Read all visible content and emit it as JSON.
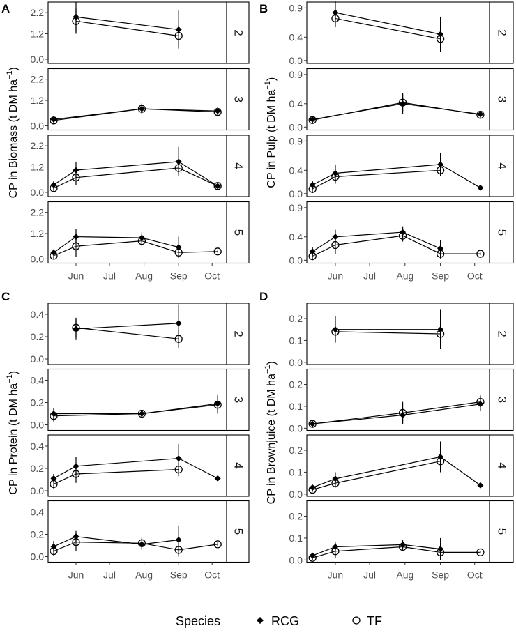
{
  "figure": {
    "x_ticks": [
      "Jun",
      "Jul",
      "Aug",
      "Sep",
      "Oct"
    ],
    "x_tick_days": [
      161,
      191,
      222,
      253,
      283
    ],
    "x_range_days": [
      136,
      296
    ],
    "legend": {
      "title": "Species",
      "items": [
        {
          "name": "RCG",
          "marker": "filled-diamond"
        },
        {
          "name": "TF",
          "marker": "open-circle"
        }
      ]
    }
  },
  "chart_data": [
    {
      "panel": "A",
      "type": "line",
      "ylabel": "CP in Biomass (t DM ha⁻¹)",
      "ylabel_base": "CP in Biomass (t DM ha",
      "ylabel_exp": "−1",
      "ylim": [
        -0.2,
        2.7
      ],
      "yticks": [
        "0.0",
        "1.2",
        "2.2"
      ],
      "ytick_values": [
        0.0,
        1.2,
        2.2
      ],
      "facets": [
        {
          "label": "2",
          "series": [
            {
              "name": "RCG",
              "x": [
                161,
                253
              ],
              "y": [
                2.0,
                1.4
              ],
              "err": [
                0.7,
                0.9
              ]
            },
            {
              "name": "TF",
              "x": [
                161,
                253
              ],
              "y": [
                1.8,
                1.1
              ],
              "err": [
                0.6,
                0.5
              ]
            }
          ]
        },
        {
          "label": "3",
          "series": [
            {
              "name": "RCG",
              "x": [
                141,
                220,
                288
              ],
              "y": [
                0.3,
                0.8,
                0.7
              ],
              "err": [
                0.15,
                0.25,
                0.2
              ]
            },
            {
              "name": "TF",
              "x": [
                141,
                220,
                288
              ],
              "y": [
                0.25,
                0.8,
                0.65
              ],
              "err": [
                0.15,
                0.25,
                0.2
              ]
            }
          ]
        },
        {
          "label": "4",
          "series": [
            {
              "name": "RCG",
              "x": [
                141,
                161,
                253,
                288
              ],
              "y": [
                0.35,
                1.05,
                1.45,
                0.3
              ],
              "err": [
                0.2,
                0.4,
                0.7,
                0.1
              ]
            },
            {
              "name": "TF",
              "x": [
                141,
                161,
                253,
                288
              ],
              "y": [
                0.2,
                0.7,
                1.15,
                0.3
              ],
              "err": [
                0.15,
                0.35,
                0.3,
                0.1
              ]
            }
          ]
        },
        {
          "label": "5",
          "series": [
            {
              "name": "RCG",
              "x": [
                141,
                161,
                220,
                253
              ],
              "y": [
                0.3,
                1.05,
                1.0,
                0.55
              ],
              "err": [
                0.15,
                0.35,
                0.25,
                0.5
              ]
            },
            {
              "name": "TF",
              "x": [
                141,
                161,
                220,
                253,
                288
              ],
              "y": [
                0.15,
                0.6,
                0.85,
                0.3,
                0.35
              ],
              "err": [
                0.15,
                0.5,
                0.25,
                0.25,
                0.05
              ]
            }
          ]
        }
      ]
    },
    {
      "panel": "B",
      "type": "line",
      "ylabel": "CP in Pulp (t DM ha⁻¹)",
      "ylabel_base": "CP in Pulp (t DM ha",
      "ylabel_exp": "−1",
      "ylim": [
        -0.05,
        1.0
      ],
      "yticks": [
        "0.0",
        "0.4",
        "0.9"
      ],
      "ytick_values": [
        0.0,
        0.4,
        0.9
      ],
      "facets": [
        {
          "label": "2",
          "series": [
            {
              "name": "RCG",
              "x": [
                161,
                253
              ],
              "y": [
                0.82,
                0.45
              ],
              "err": [
                0.2,
                0.3
              ]
            },
            {
              "name": "TF",
              "x": [
                161,
                253
              ],
              "y": [
                0.72,
                0.37
              ],
              "err": [
                0.15,
                0.2
              ]
            }
          ]
        },
        {
          "label": "3",
          "series": [
            {
              "name": "RCG",
              "x": [
                141,
                220,
                288
              ],
              "y": [
                0.13,
                0.4,
                0.22
              ],
              "err": [
                0.06,
                0.18,
                0.05
              ]
            },
            {
              "name": "TF",
              "x": [
                141,
                220,
                288
              ],
              "y": [
                0.12,
                0.42,
                0.21
              ],
              "err": [
                0.06,
                0.15,
                0.05
              ]
            }
          ]
        },
        {
          "label": "4",
          "series": [
            {
              "name": "RCG",
              "x": [
                141,
                161,
                253,
                288
              ],
              "y": [
                0.15,
                0.35,
                0.5,
                0.1
              ],
              "err": [
                0.07,
                0.15,
                0.2,
                0.03
              ]
            },
            {
              "name": "TF",
              "x": [
                141,
                161,
                253
              ],
              "y": [
                0.08,
                0.29,
                0.4
              ],
              "err": [
                0.07,
                0.12,
                0.1
              ]
            }
          ]
        },
        {
          "label": "5",
          "series": [
            {
              "name": "RCG",
              "x": [
                141,
                161,
                220,
                253
              ],
              "y": [
                0.15,
                0.4,
                0.48,
                0.2
              ],
              "err": [
                0.07,
                0.12,
                0.1,
                0.15
              ]
            },
            {
              "name": "TF",
              "x": [
                141,
                161,
                220,
                253,
                288
              ],
              "y": [
                0.07,
                0.26,
                0.42,
                0.11,
                0.11
              ],
              "err": [
                0.07,
                0.15,
                0.1,
                0.08,
                0.02
              ]
            }
          ]
        }
      ]
    },
    {
      "panel": "C",
      "type": "line",
      "ylabel": "CP in Protein (t DM ha⁻¹)",
      "ylabel_base": "CP in Protein (t DM ha",
      "ylabel_exp": "−1",
      "ylim": [
        -0.05,
        0.5
      ],
      "yticks": [
        "0.0",
        "0.2",
        "0.4"
      ],
      "ytick_values": [
        0.0,
        0.2,
        0.4
      ],
      "facets": [
        {
          "label": "2",
          "series": [
            {
              "name": "RCG",
              "x": [
                161,
                253
              ],
              "y": [
                0.27,
                0.32
              ],
              "err": [
                0.1,
                0.17
              ]
            },
            {
              "name": "TF",
              "x": [
                161,
                253
              ],
              "y": [
                0.28,
                0.18
              ],
              "err": [
                0.08,
                0.08
              ]
            }
          ]
        },
        {
          "label": "3",
          "series": [
            {
              "name": "RCG",
              "x": [
                141,
                220,
                288
              ],
              "y": [
                0.1,
                0.1,
                0.19
              ],
              "err": [
                0.05,
                0.03,
                0.08
              ]
            },
            {
              "name": "TF",
              "x": [
                141,
                220,
                288
              ],
              "y": [
                0.08,
                0.1,
                0.18
              ],
              "err": [
                0.05,
                0.03,
                0.08
              ]
            }
          ]
        },
        {
          "label": "4",
          "series": [
            {
              "name": "RCG",
              "x": [
                141,
                161,
                253,
                288
              ],
              "y": [
                0.11,
                0.22,
                0.29,
                0.11
              ],
              "err": [
                0.04,
                0.08,
                0.13,
                0.02
              ]
            },
            {
              "name": "TF",
              "x": [
                141,
                161,
                253
              ],
              "y": [
                0.06,
                0.15,
                0.19
              ],
              "err": [
                0.04,
                0.08,
                0.06
              ]
            }
          ]
        },
        {
          "label": "5",
          "series": [
            {
              "name": "RCG",
              "x": [
                141,
                161,
                220,
                253
              ],
              "y": [
                0.09,
                0.18,
                0.11,
                0.15
              ],
              "err": [
                0.05,
                0.05,
                0.05,
                0.13
              ]
            },
            {
              "name": "TF",
              "x": [
                141,
                161,
                220,
                253,
                288
              ],
              "y": [
                0.05,
                0.13,
                0.12,
                0.06,
                0.11
              ],
              "err": [
                0.04,
                0.08,
                0.05,
                0.06,
                0.02
              ]
            }
          ]
        }
      ]
    },
    {
      "panel": "D",
      "type": "line",
      "ylabel": "CP in Brownjuice (t DM ha⁻¹)",
      "ylabel_base": "CP in Brownjuice (t DM ha",
      "ylabel_exp": "−1",
      "ylim": [
        -0.01,
        0.27
      ],
      "yticks": [
        "0.0",
        "0.1",
        "0.2"
      ],
      "ytick_values": [
        0.0,
        0.1,
        0.2
      ],
      "facets": [
        {
          "label": "2",
          "series": [
            {
              "name": "RCG",
              "x": [
                161,
                253
              ],
              "y": [
                0.15,
                0.15
              ],
              "err": [
                0.06,
                0.09
              ]
            },
            {
              "name": "TF",
              "x": [
                161,
                253
              ],
              "y": [
                0.14,
                0.13
              ],
              "err": [
                0.05,
                0.04
              ]
            }
          ]
        },
        {
          "label": "3",
          "series": [
            {
              "name": "RCG",
              "x": [
                141,
                220,
                288
              ],
              "y": [
                0.02,
                0.06,
                0.11
              ],
              "err": [
                0.01,
                0.03,
                0.03
              ]
            },
            {
              "name": "TF",
              "x": [
                141,
                220,
                288
              ],
              "y": [
                0.02,
                0.07,
                0.12
              ],
              "err": [
                0.01,
                0.05,
                0.03
              ]
            }
          ]
        },
        {
          "label": "4",
          "series": [
            {
              "name": "RCG",
              "x": [
                141,
                161,
                253,
                288
              ],
              "y": [
                0.03,
                0.07,
                0.17,
                0.04
              ],
              "err": [
                0.01,
                0.03,
                0.07,
                0.01
              ]
            },
            {
              "name": "TF",
              "x": [
                141,
                161,
                253
              ],
              "y": [
                0.02,
                0.05,
                0.15
              ],
              "err": [
                0.01,
                0.02,
                0.05
              ]
            }
          ]
        },
        {
          "label": "5",
          "series": [
            {
              "name": "RCG",
              "x": [
                141,
                161,
                220,
                253
              ],
              "y": [
                0.02,
                0.06,
                0.07,
                0.05
              ],
              "err": [
                0.01,
                0.02,
                0.02,
                0.05
              ]
            },
            {
              "name": "TF",
              "x": [
                141,
                161,
                220,
                253,
                288
              ],
              "y": [
                0.01,
                0.04,
                0.06,
                0.035,
                0.035
              ],
              "err": [
                0.01,
                0.03,
                0.02,
                0.02,
                0.005
              ]
            }
          ]
        }
      ]
    }
  ]
}
